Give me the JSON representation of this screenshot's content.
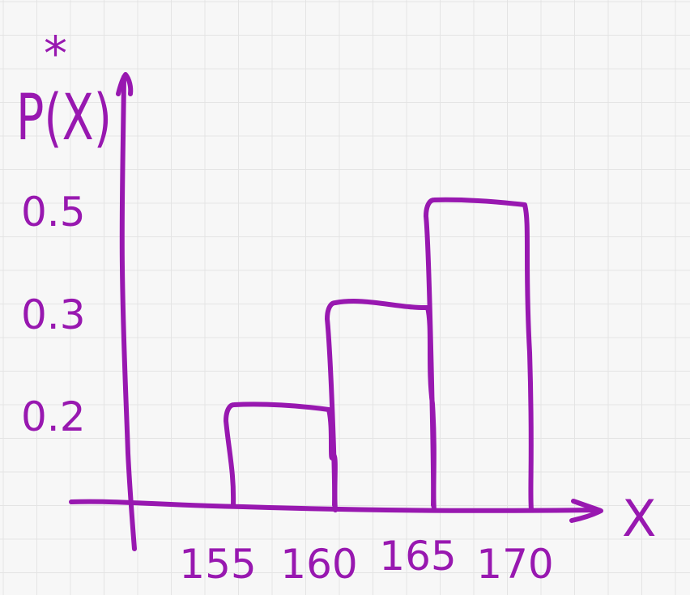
{
  "colors": {
    "ink": "#9818b0",
    "grid": "#e4e4e4",
    "background": "#f7f7f7"
  },
  "chart_data": {
    "type": "bar",
    "style": "hand-drawn histogram",
    "bin_edges": [
      155,
      160,
      165,
      170
    ],
    "categories": [
      "155-160",
      "160-165",
      "165-170"
    ],
    "values": [
      0.2,
      0.3,
      0.5
    ],
    "xlabel": "X",
    "ylabel": "P(X)",
    "ylabel_mark": "*",
    "x_tick_labels": [
      "155",
      "160",
      "165",
      "170"
    ],
    "y_tick_labels": [
      "0.5",
      "0.3",
      "0.2"
    ],
    "ylim": [
      0,
      0.6
    ],
    "grid": true,
    "legend": "none"
  }
}
